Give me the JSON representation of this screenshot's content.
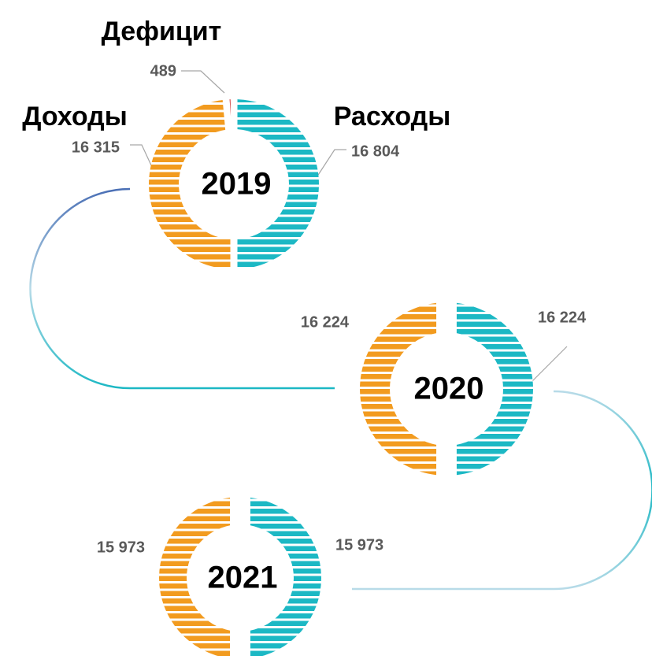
{
  "chart_data": [
    {
      "type": "donut",
      "title": "2019",
      "categories": [
        "Расходы",
        "Доходы",
        "Дефицит"
      ],
      "values": [
        16804,
        16315,
        489
      ],
      "value_labels": [
        "16 804",
        "16 315",
        "489"
      ],
      "colors": [
        "#1cb8c4",
        "#f29b1f",
        "#c00000"
      ]
    },
    {
      "type": "donut",
      "title": "2020",
      "categories": [
        null,
        null
      ],
      "values": [
        16224,
        16224
      ],
      "value_labels": [
        "16 224",
        "16 224"
      ],
      "colors": [
        "#1cb8c4",
        "#f29b1f"
      ]
    },
    {
      "type": "donut",
      "title": "2021",
      "categories": [
        null,
        null
      ],
      "values": [
        15973,
        15973
      ],
      "value_labels": [
        "15 973",
        "15 973"
      ],
      "colors": [
        "#1cb8c4",
        "#f29b1f"
      ]
    }
  ]
}
